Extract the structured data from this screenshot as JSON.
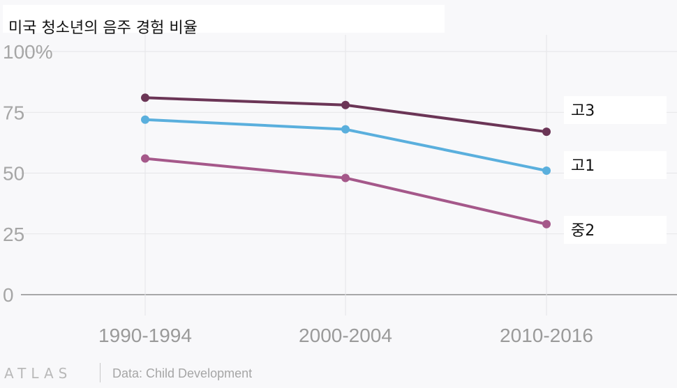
{
  "chart_data": {
    "type": "line",
    "title": "미국 청소년의 음주 경험 비율",
    "categories": [
      "1990-1994",
      "2000-2004",
      "2010-2016"
    ],
    "yticks": [
      "0",
      "25",
      "50",
      "75",
      "100%"
    ],
    "ylim": [
      0,
      100
    ],
    "grid": true,
    "series": [
      {
        "name": "고3",
        "values": [
          81,
          78,
          67
        ],
        "color": "#6b3556"
      },
      {
        "name": "고1",
        "values": [
          72,
          68,
          51
        ],
        "color": "#5aafdd"
      },
      {
        "name": "중2",
        "values": [
          56,
          48,
          29
        ],
        "color": "#a5588a"
      }
    ]
  },
  "footer": {
    "logo": "ATLAS",
    "source": "Data: Child Development"
  }
}
